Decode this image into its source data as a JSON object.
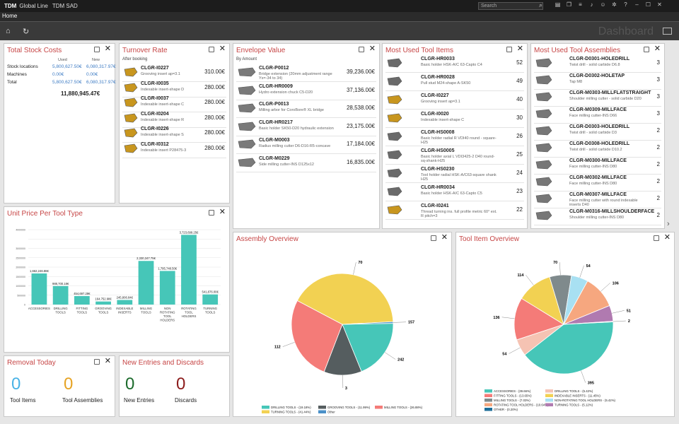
{
  "titlebar": {
    "brand": "TDM",
    "brand_rest": "Global Line",
    "module": "TDM SAD",
    "search_placeholder": "Search"
  },
  "menubar": {
    "home_tab": "Home"
  },
  "toolbar": {
    "dashboard_label": "Dashboard"
  },
  "panels": {
    "total_stock": {
      "title": "Total Stock Costs",
      "col_used": "Used",
      "col_new": "New",
      "rows": [
        {
          "label": "Stock locations",
          "used": "5,800,627.50€",
          "new": "6,080,317.97€"
        },
        {
          "label": "Machines",
          "used": "0.00€",
          "new": "0.00€"
        },
        {
          "label": "Total",
          "used": "5,800,627.50€",
          "new": "6,080,317.97€"
        }
      ],
      "grand_total": "11,880,945.47€"
    },
    "turnover": {
      "title": "Turnover Rate",
      "subtitle": "After booking",
      "items": [
        {
          "name": "CLGR-I0227",
          "desc": "Grooving insert ap=3.1",
          "value": "310.00€"
        },
        {
          "name": "CLGR-I0035",
          "desc": "Indexable insert-shape D",
          "value": "280.00€"
        },
        {
          "name": "CLGR-I0037",
          "desc": "Indexable insert-shape C",
          "value": "280.00€"
        },
        {
          "name": "CLGR-I0204",
          "desc": "Indexable insert-shape R",
          "value": "280.00€"
        },
        {
          "name": "CLGR-I0226",
          "desc": "Indexable insert-shape S",
          "value": "280.00€"
        },
        {
          "name": "CLGR-I0312",
          "desc": "Indexable insert P28475-3",
          "value": "280.00€"
        }
      ]
    },
    "envelope": {
      "title": "Envelope Value",
      "subtitle": "By Amount",
      "items": [
        {
          "name": "CLGR-P0012",
          "desc": "Bridge extension (20mm adjustment range Ys=-34 to 34)",
          "value": "39,236.00€"
        },
        {
          "name": "CLGR-HR0009",
          "desc": "Hydro extension chuck C5-D20",
          "value": "37,136.00€"
        },
        {
          "name": "CLGR-P0013",
          "desc": "Milling arbor for CoroBore® XL bridge",
          "value": "28,538.00€"
        },
        {
          "name": "CLGR-HR0217",
          "desc": "Basic holder SK50-D20 hydraulic extension",
          "value": "23,175.00€"
        },
        {
          "name": "CLGR-M0003",
          "desc": "Radius milling cutter D6-D16-R5-concave",
          "value": "17,184.00€"
        },
        {
          "name": "CLGR-M0229",
          "desc": "Side milling cutter-INS D125x12",
          "value": "16,835.00€"
        }
      ]
    },
    "most_used_items": {
      "title": "Most Used Tool Items",
      "items": [
        {
          "name": "CLGR-HR0033",
          "desc": "Basic holder HSK-A/C 63-Capto C4",
          "value": "52"
        },
        {
          "name": "CLGR-HR0028",
          "desc": "Pull stud M24-shape A-SK50",
          "value": "49"
        },
        {
          "name": "CLGR-I0227",
          "desc": "Grooving insert ap=3.1",
          "value": "40"
        },
        {
          "name": "CLGR-I0020",
          "desc": "Indexable insert-shape C",
          "value": "30"
        },
        {
          "name": "CLGR-HS0008",
          "desc": "Basic holder radial R VDI40 round - square- H25",
          "value": "26"
        },
        {
          "name": "CLGR-HS0005",
          "desc": "Basic holder axial L VDI3425-2 D40 round-sq-shank-H25",
          "value": "25"
        },
        {
          "name": "CLGR-HS0230",
          "desc": "Tool holder radial HSK-A/C63-square shank H25",
          "value": "24"
        },
        {
          "name": "CLGR-HR0034",
          "desc": "Basic holder HSK-A/C 63-Capto C5",
          "value": "23"
        },
        {
          "name": "CLGR-I0241",
          "desc": "Thread turning ins. full profile metric 60° ext. R pitch=3",
          "value": "22"
        }
      ]
    },
    "most_used_assemblies": {
      "title": "Most Used Tool Assemblies",
      "items": [
        {
          "name": "CLGR-D0301-HOLEDRILL",
          "desc": "Twist drill - solid carbide D6.8",
          "value": "3"
        },
        {
          "name": "CLGR-D0302-HOLETAP",
          "desc": "Tap M8",
          "value": "3"
        },
        {
          "name": "CLGR-M0303-MILLFLATSTRAIGHT",
          "desc": "Shoulder milling cutter - solid carbide D20",
          "value": "3"
        },
        {
          "name": "CLGR-M0309-MILLFACE",
          "desc": "Face milling cutter-INS D66",
          "value": "3"
        },
        {
          "name": "CLGR-D0303-HOLEDRILL",
          "desc": "Twist drill - solid carbide D3",
          "value": "2"
        },
        {
          "name": "CLGR-D0308-HOLEDRILL",
          "desc": "Twist drill - solid carbide D10.2",
          "value": "2"
        },
        {
          "name": "CLGR-M0300-MILLFACE",
          "desc": "Face milling cutter-INS D80",
          "value": "2"
        },
        {
          "name": "CLGR-M0302-MILLFACE",
          "desc": "Face milling cutter-INS D80",
          "value": "2"
        },
        {
          "name": "CLGR-M0307-MILLFACE",
          "desc": "Face milling cutter with round indexable inserts D40",
          "value": "2"
        },
        {
          "name": "CLGR-M0316-MILLSHOULDERFACE",
          "desc": "Shoulder milling cutter-INS D80",
          "value": "2"
        }
      ]
    },
    "unit_price": {
      "title": "Unit Price Per Tool Type"
    },
    "assembly_overview": {
      "title": "Assembly Overview"
    },
    "tool_item_overview": {
      "title": "Tool Item Overview"
    },
    "removal": {
      "title": "Removal Today",
      "count_items": "0",
      "label_items": "Tool Items",
      "count_asm": "0",
      "label_asm": "Tool Assemblies"
    },
    "new_entries": {
      "title": "New Entries and Discards",
      "count_new": "0",
      "label_new": "New Entries",
      "count_disc": "0",
      "label_disc": "Discards"
    }
  },
  "colors": {
    "teal": "#46c6b8",
    "red_title": "#c64545",
    "blue_value": "#3d7bc4"
  },
  "chart_data": [
    {
      "type": "bar",
      "title": "Unit Price Per Tool Type",
      "categories": [
        "ACCESSORIES",
        "DRILLING TOOLS",
        "FITTING TOOLS",
        "GROOVING TOOLS",
        "INDEXABLE INSERTS",
        "MILLING TOOLS",
        "NON ROTATING TOOL HOLDERS",
        "ROTATING TOOL HOLDERS",
        "TURNING TOOLS"
      ],
      "values": [
        1662246.88,
        988700.18,
        454697.28,
        164752.98,
        245806.84,
        2330347.75,
        1795748.5,
        3723699.25,
        541876
      ],
      "value_labels": [
        "1,662,246.88€",
        "988,700.18€",
        "454,697.28€",
        "164,752.98€",
        "245,806.84€",
        "2,330,347.75€",
        "1,795,748.50€",
        "3,723,699.25€",
        "541,876.00€"
      ],
      "ylim": [
        0,
        4000000
      ],
      "yticks": [
        "4000000",
        "3000000",
        "2500000",
        "2000000",
        "1500000",
        "1000000",
        "500000",
        "0"
      ],
      "grid": true,
      "color": "#46c6b8"
    },
    {
      "type": "pie",
      "title": "Assembly Overview",
      "slices": [
        {
          "name": "DRILLING TOOLS - (19.18%)",
          "value": 112,
          "color": "#46c6b8"
        },
        {
          "name": "GROOVING TOOLS - (11.99%)",
          "value": 70,
          "color": "#555d5f"
        },
        {
          "name": "MILLING TOOLS - (26.88%)",
          "value": 157,
          "color": "#f47b78"
        },
        {
          "name": "TURNING TOOLS - (41.44%)",
          "value": 242,
          "color": "#f2d152"
        },
        {
          "name": "Other",
          "value": 3,
          "color": "#4a90c8"
        }
      ],
      "labels": [
        "242",
        "3",
        "112",
        "70",
        "157"
      ],
      "legend_placement": "bottom"
    },
    {
      "type": "pie",
      "title": "Tool Item Overview",
      "slices": [
        {
          "name": "ACCESSORIES - (39.66%)",
          "value": 395,
          "color": "#46c6b8"
        },
        {
          "name": "DRILLING TOOLS - (5.42%)",
          "value": 54,
          "color": "#f5c3b3"
        },
        {
          "name": "FITTING TOOLS - (13.65%)",
          "value": 136,
          "color": "#f47b78"
        },
        {
          "name": "INDEXABLE INSERTS - (11.45%)",
          "value": 114,
          "color": "#f2d152"
        },
        {
          "name": "MILLING TOOLS - (7.03%)",
          "value": 70,
          "color": "#7f8a8c"
        },
        {
          "name": "NON-ROTATING TOOL HOLDERS - (5.42%)",
          "value": 54,
          "color": "#a8e0f2"
        },
        {
          "name": "ROTATING TOOL HOLDERS - (10.64%)",
          "value": 106,
          "color": "#f6a77f"
        },
        {
          "name": "TURNING TOOLS - (5.12%)",
          "value": 51,
          "color": "#b07ab0"
        },
        {
          "name": "OTHER - (0.20%)",
          "value": 2,
          "color": "#1d6e99"
        }
      ],
      "labels": [
        "395",
        "54",
        "136",
        "114",
        "70",
        "54",
        "106",
        "51",
        "2"
      ],
      "legend_placement": "bottom"
    }
  ]
}
